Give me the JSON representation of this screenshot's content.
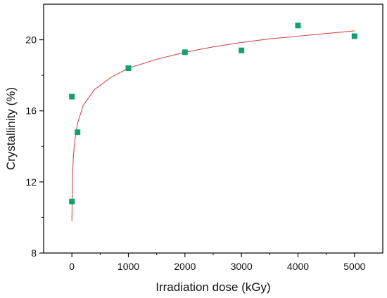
{
  "chart_data": {
    "type": "scatter",
    "title": "",
    "xlabel": "Irradiation dose (kGy)",
    "ylabel": "Crystallinity (%)",
    "xlim": [
      -500,
      5500
    ],
    "ylim": [
      8,
      22
    ],
    "x_ticks": [
      0,
      1000,
      2000,
      3000,
      4000,
      5000
    ],
    "y_ticks": [
      8,
      12,
      16,
      20
    ],
    "grid": false,
    "legend": "none",
    "series": [
      {
        "marker": "square",
        "color": "#12a070",
        "points": [
          {
            "x": 0,
            "y": 16.8
          },
          {
            "x": 0,
            "y": 10.9
          },
          {
            "x": 100,
            "y": 14.8
          },
          {
            "x": 1000,
            "y": 18.4
          },
          {
            "x": 2000,
            "y": 19.3
          },
          {
            "x": 3000,
            "y": 19.4
          },
          {
            "x": 4000,
            "y": 20.8
          },
          {
            "x": 5000,
            "y": 20.2
          }
        ]
      }
    ],
    "fit_curve": {
      "color": "#d44a4a",
      "points": [
        {
          "x": 1,
          "y": 9.8
        },
        {
          "x": 10,
          "y": 12.3
        },
        {
          "x": 25,
          "y": 13.4
        },
        {
          "x": 50,
          "y": 14.3
        },
        {
          "x": 100,
          "y": 15.3
        },
        {
          "x": 200,
          "y": 16.3
        },
        {
          "x": 400,
          "y": 17.2
        },
        {
          "x": 700,
          "y": 17.9
        },
        {
          "x": 1000,
          "y": 18.4
        },
        {
          "x": 1500,
          "y": 18.9
        },
        {
          "x": 2000,
          "y": 19.3
        },
        {
          "x": 2500,
          "y": 19.6
        },
        {
          "x": 3000,
          "y": 19.85
        },
        {
          "x": 3500,
          "y": 20.05
        },
        {
          "x": 4000,
          "y": 20.2
        },
        {
          "x": 4500,
          "y": 20.35
        },
        {
          "x": 5000,
          "y": 20.5
        }
      ]
    }
  }
}
